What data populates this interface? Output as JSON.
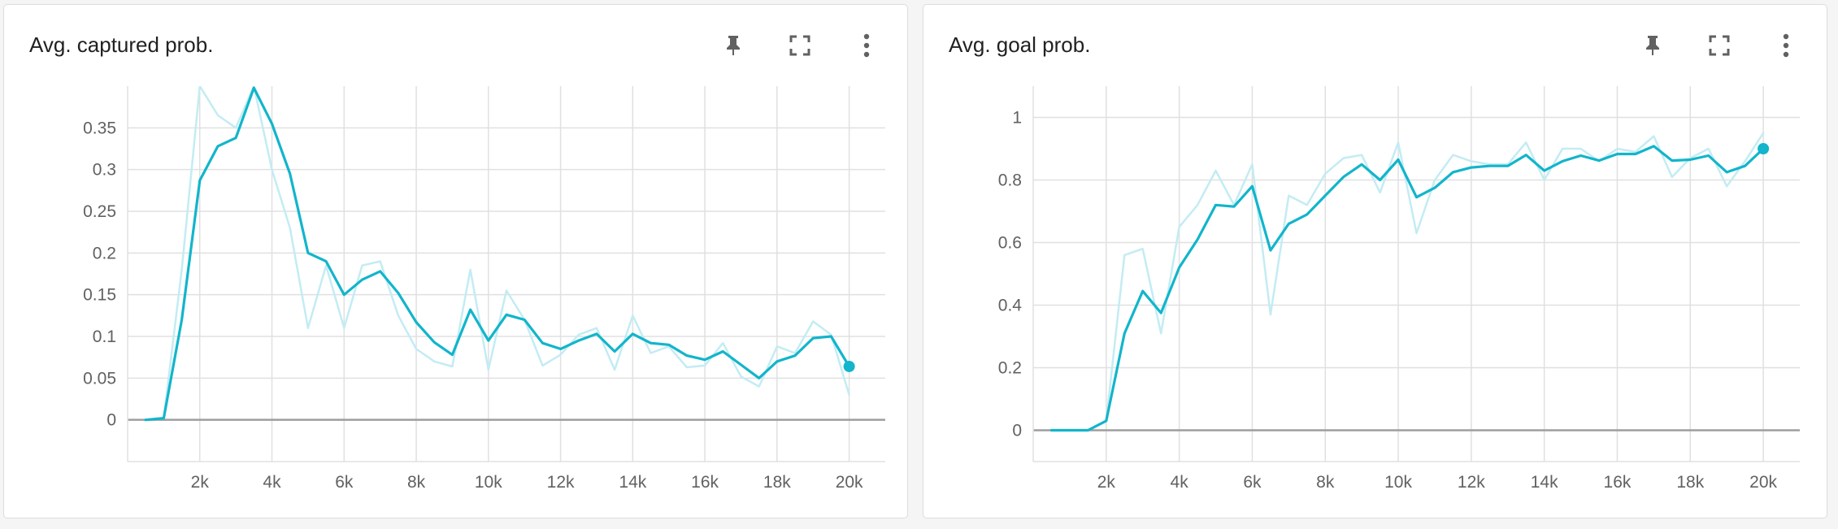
{
  "colors": {
    "line": "#12b5cb",
    "raw_line": "#c3ecf3",
    "grid": "#e0e0e0",
    "axis_zero": "#9e9e9e"
  },
  "icons": [
    "pin-icon",
    "fullscreen-icon",
    "more-vert-icon"
  ],
  "chart_data": [
    {
      "type": "line",
      "title": "Avg. captured prob.",
      "xlim": [
        0,
        21000
      ],
      "ylim": [
        -0.05,
        0.4
      ],
      "x_ticks": [
        2000,
        4000,
        6000,
        8000,
        10000,
        12000,
        14000,
        16000,
        18000,
        20000
      ],
      "x_tick_labels": [
        "2k",
        "4k",
        "6k",
        "8k",
        "10k",
        "12k",
        "14k",
        "16k",
        "18k",
        "20k"
      ],
      "y_ticks": [
        0,
        0.05,
        0.1,
        0.15,
        0.2,
        0.25,
        0.3,
        0.35
      ],
      "y_tick_labels": [
        "0",
        "0.05",
        "0.1",
        "0.15",
        "0.2",
        "0.25",
        "0.3",
        "0.35"
      ],
      "grid": true,
      "series": [
        {
          "role": "smoothed",
          "x": [
            500,
            1000,
            1500,
            2000,
            2500,
            3000,
            3500,
            4000,
            4500,
            5000,
            5500,
            6000,
            6500,
            7000,
            7500,
            8000,
            8500,
            9000,
            9500,
            10000,
            10500,
            11000,
            11500,
            12000,
            12500,
            13000,
            13500,
            14000,
            14500,
            15000,
            15500,
            16000,
            16500,
            17000,
            17500,
            18000,
            18500,
            19000,
            19500,
            20000
          ],
          "y": [
            0,
            0.002,
            0.12,
            0.287,
            0.328,
            0.338,
            0.398,
            0.355,
            0.295,
            0.2,
            0.19,
            0.15,
            0.168,
            0.178,
            0.152,
            0.117,
            0.093,
            0.078,
            0.132,
            0.095,
            0.126,
            0.12,
            0.092,
            0.085,
            0.095,
            0.103,
            0.082,
            0.103,
            0.092,
            0.09,
            0.077,
            0.072,
            0.082,
            0.066,
            0.05,
            0.07,
            0.077,
            0.098,
            0.1,
            0.064
          ]
        },
        {
          "role": "raw",
          "x": [
            500,
            1000,
            1500,
            2000,
            2500,
            3000,
            3500,
            4000,
            4500,
            5000,
            5500,
            6000,
            6500,
            7000,
            7500,
            8000,
            8500,
            9000,
            9500,
            10000,
            10500,
            11000,
            11500,
            12000,
            12500,
            13000,
            13500,
            14000,
            14500,
            15000,
            15500,
            16000,
            16500,
            17000,
            17500,
            18000,
            18500,
            19000,
            19500,
            20000
          ],
          "y": [
            0,
            0.002,
            0.18,
            0.4,
            0.365,
            0.35,
            0.4,
            0.3,
            0.23,
            0.11,
            0.185,
            0.11,
            0.185,
            0.19,
            0.125,
            0.085,
            0.07,
            0.064,
            0.18,
            0.06,
            0.155,
            0.12,
            0.065,
            0.078,
            0.102,
            0.11,
            0.06,
            0.125,
            0.08,
            0.088,
            0.063,
            0.065,
            0.092,
            0.052,
            0.04,
            0.088,
            0.08,
            0.118,
            0.102,
            0.03
          ]
        }
      ]
    },
    {
      "type": "line",
      "title": "Avg. goal prob.",
      "xlim": [
        0,
        21000
      ],
      "ylim": [
        -0.1,
        1.1
      ],
      "x_ticks": [
        2000,
        4000,
        6000,
        8000,
        10000,
        12000,
        14000,
        16000,
        18000,
        20000
      ],
      "x_tick_labels": [
        "2k",
        "4k",
        "6k",
        "8k",
        "10k",
        "12k",
        "14k",
        "16k",
        "18k",
        "20k"
      ],
      "y_ticks": [
        0,
        0.2,
        0.4,
        0.6,
        0.8,
        1
      ],
      "y_tick_labels": [
        "0",
        "0.2",
        "0.4",
        "0.6",
        "0.8",
        "1"
      ],
      "grid": true,
      "series": [
        {
          "role": "smoothed",
          "x": [
            500,
            1000,
            1500,
            2000,
            2500,
            3000,
            3500,
            4000,
            4500,
            5000,
            5500,
            6000,
            6500,
            7000,
            7500,
            8000,
            8500,
            9000,
            9500,
            10000,
            10500,
            11000,
            11500,
            12000,
            12500,
            13000,
            13500,
            14000,
            14500,
            15000,
            15500,
            16000,
            16500,
            17000,
            17500,
            18000,
            18500,
            19000,
            19500,
            20000
          ],
          "y": [
            0,
            0,
            0,
            0.03,
            0.31,
            0.445,
            0.375,
            0.52,
            0.61,
            0.72,
            0.715,
            0.78,
            0.575,
            0.66,
            0.69,
            0.75,
            0.81,
            0.85,
            0.8,
            0.865,
            0.745,
            0.775,
            0.825,
            0.84,
            0.845,
            0.845,
            0.88,
            0.83,
            0.86,
            0.878,
            0.862,
            0.883,
            0.883,
            0.908,
            0.862,
            0.865,
            0.878,
            0.825,
            0.845,
            0.9
          ]
        },
        {
          "role": "raw",
          "x": [
            500,
            1000,
            1500,
            2000,
            2500,
            3000,
            3500,
            4000,
            4500,
            5000,
            5500,
            6000,
            6500,
            7000,
            7500,
            8000,
            8500,
            9000,
            9500,
            10000,
            10500,
            11000,
            11500,
            12000,
            12500,
            13000,
            13500,
            14000,
            14500,
            15000,
            15500,
            16000,
            16500,
            17000,
            17500,
            18000,
            18500,
            19000,
            19500,
            20000
          ],
          "y": [
            0,
            0,
            0,
            0.03,
            0.56,
            0.58,
            0.31,
            0.65,
            0.72,
            0.83,
            0.72,
            0.85,
            0.37,
            0.75,
            0.72,
            0.82,
            0.87,
            0.88,
            0.76,
            0.92,
            0.63,
            0.8,
            0.88,
            0.86,
            0.85,
            0.85,
            0.92,
            0.8,
            0.9,
            0.9,
            0.86,
            0.9,
            0.89,
            0.94,
            0.81,
            0.87,
            0.9,
            0.78,
            0.86,
            0.95
          ]
        }
      ]
    }
  ]
}
